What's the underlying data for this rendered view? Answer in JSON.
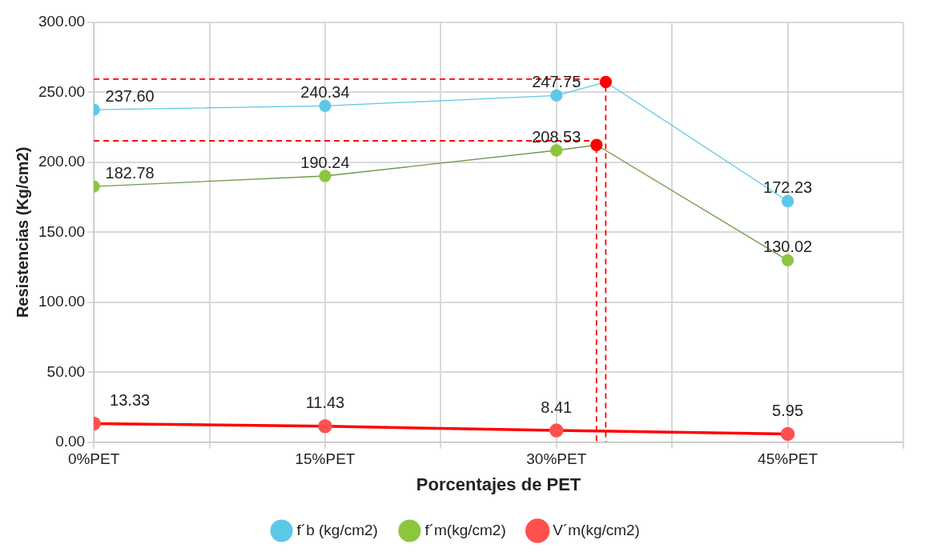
{
  "chart_data": {
    "type": "line",
    "xlabel": "Porcentajes de PET",
    "ylabel": "Resistencias (Kg/cm2)",
    "xlim": [
      0,
      52.5
    ],
    "xticks": [
      {
        "value": 0,
        "label": "0%PET"
      },
      {
        "value": 7.5,
        "label": null
      },
      {
        "value": 15,
        "label": "15%PET"
      },
      {
        "value": 22.5,
        "label": null
      },
      {
        "value": 30,
        "label": "30%PET"
      },
      {
        "value": 37.5,
        "label": null
      },
      {
        "value": 45,
        "label": "45%PET"
      },
      {
        "value": 52.5,
        "label": null
      }
    ],
    "ylim": [
      0,
      300
    ],
    "yticks": [
      {
        "value": 0,
        "label": "0.00"
      },
      {
        "value": 50,
        "label": "50.00"
      },
      {
        "value": 100,
        "label": "100.00"
      },
      {
        "value": 150,
        "label": "150.00"
      },
      {
        "value": 200,
        "label": "200.00"
      },
      {
        "value": 250,
        "label": "250.00"
      },
      {
        "value": 300,
        "label": "300.00"
      }
    ],
    "grid": true,
    "legend": "bottom",
    "marker": "circle",
    "line_style": "solid",
    "series": [
      {
        "name": "f´b (kg/cm2)",
        "color": "#5bc8e8",
        "colors": [
          "#5bc8e8",
          "#5bc8e8",
          "#5bc8e8",
          "#ff0000",
          "#5bc8e8"
        ],
        "x": [
          0,
          15,
          30,
          33.2,
          45
        ],
        "values": [
          237.6,
          240.34,
          247.75,
          257.4,
          172.23
        ],
        "value_labels": [
          "237.60",
          "240.34",
          "247.75",
          null,
          "172.23"
        ]
      },
      {
        "name": "f´m(kg/cm2)",
        "color": "#6f9a4a",
        "colors": [
          "#8cc63f",
          "#8cc63f",
          "#8cc63f",
          "#ff0000",
          "#8cc63f"
        ],
        "x": [
          0,
          15,
          30,
          32.6,
          45
        ],
        "values": [
          182.78,
          190.24,
          208.53,
          212.4,
          130.02
        ],
        "value_labels": [
          "182.78",
          "190.24",
          "208.53",
          null,
          "130.02"
        ]
      },
      {
        "name": "V´m(kg/cm2)",
        "color": "#ff0000",
        "colors": [
          "#ff5050",
          "#ff5050",
          "#ff5050",
          "#ff5050"
        ],
        "x": [
          0,
          15,
          30,
          45
        ],
        "values": [
          13.33,
          11.43,
          8.41,
          5.95
        ],
        "value_labels": [
          "13.33",
          "11.43",
          "8.41",
          "5.95"
        ]
      },
      {
        "color": "#ff0000",
        "line_style": "dashed",
        "marker": "none",
        "x": [
          0,
          33.2,
          33.2
        ],
        "values": [
          259.5,
          259.5,
          0
        ]
      },
      {
        "color": "#ff0000",
        "line_style": "dashed",
        "marker": "none",
        "x": [
          0,
          32.6,
          32.6
        ],
        "values": [
          215.4,
          215.4,
          0
        ]
      }
    ]
  }
}
